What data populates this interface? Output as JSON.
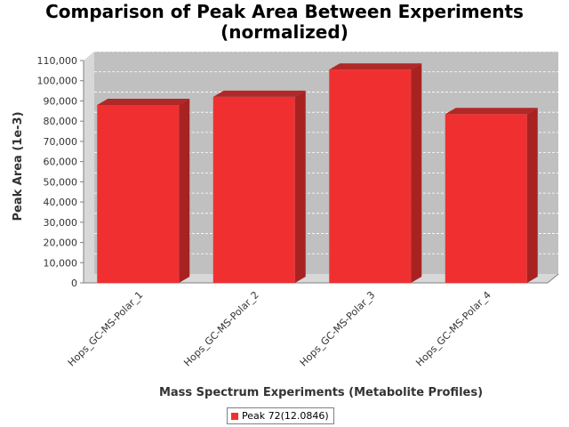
{
  "chart_data": {
    "type": "bar",
    "title_line1": "Comparison of Peak Area Between Experiments",
    "title_line2": "(normalized)",
    "xlabel": "Mass Spectrum Experiments (Metabolite Profiles)",
    "ylabel": "Peak Area (1e-3)",
    "categories": [
      "Hops_GC-MS-Polar_1",
      "Hops_GC-MS-Polar_2",
      "Hops_GC-MS-Polar_3",
      "Hops_GC-MS-Polar_4"
    ],
    "series": [
      {
        "name": "Peak 72(12.0846)",
        "values": [
          88000,
          92000,
          105500,
          83500
        ]
      }
    ],
    "ylim": [
      0,
      110000
    ],
    "yticks": [
      0,
      10000,
      20000,
      30000,
      40000,
      50000,
      60000,
      70000,
      80000,
      90000,
      100000,
      110000
    ],
    "ytick_labels": [
      "0",
      "10,000",
      "20,000",
      "30,000",
      "40,000",
      "50,000",
      "60,000",
      "70,000",
      "80,000",
      "90,000",
      "100,000",
      "110,000"
    ],
    "grid": true,
    "legend_position": "bottom",
    "colors": {
      "bar_front": "#f03030",
      "bar_top": "#b02828",
      "bar_side": "#a82222",
      "plot_back": "#c0c0c0",
      "plot_floor": "#d8d8d8",
      "grid": "#ffffff"
    }
  }
}
